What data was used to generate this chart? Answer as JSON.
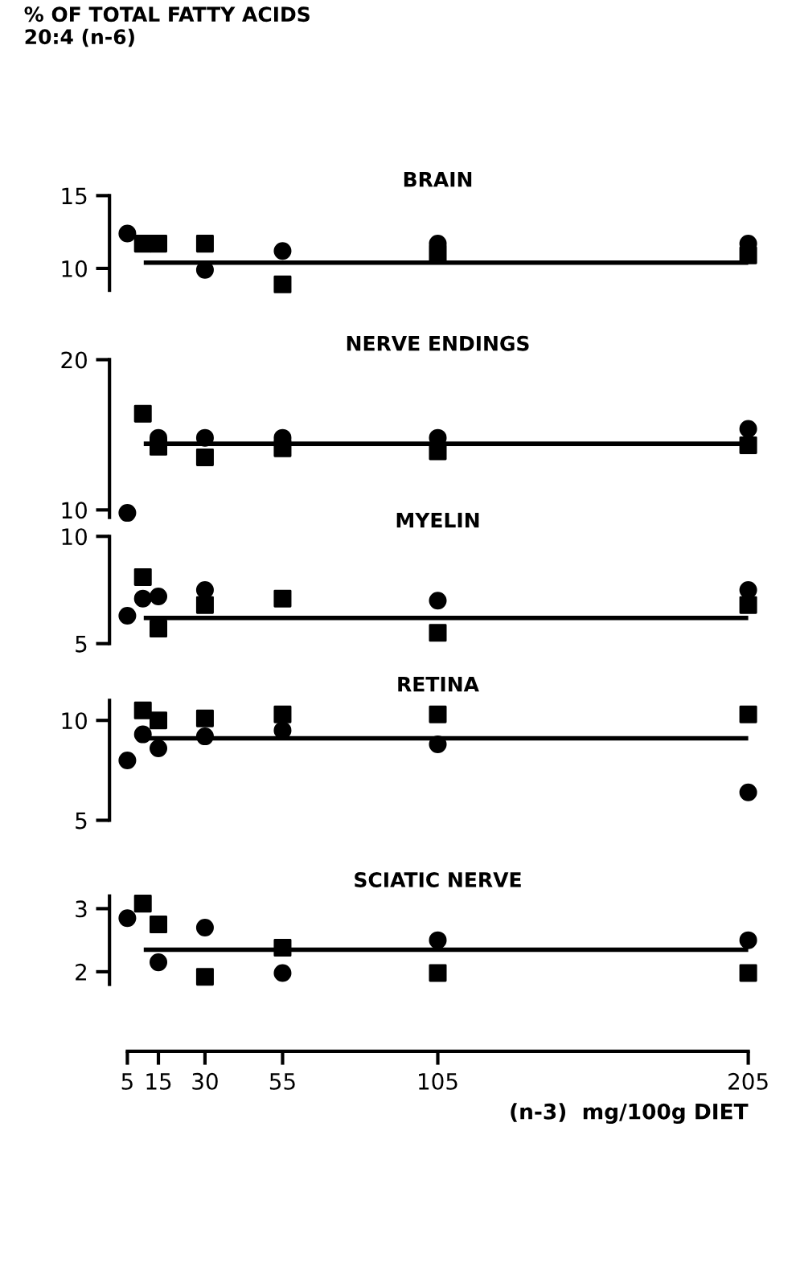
{
  "chart_data": [
    {
      "type": "scatter",
      "title": "BRAIN",
      "ylabel": "% OF TOTAL FATTY ACIDS\n20:4 (n-6)",
      "xlim": [
        5,
        205
      ],
      "ylim": [
        8.5,
        15
      ],
      "yticks": [
        10,
        15
      ],
      "tick_labels": "y",
      "grid": false,
      "legend": false,
      "series": [
        {
          "color": "#000000",
          "marker": "circle",
          "x": [
            5,
            30,
            55,
            105,
            205
          ],
          "values": [
            12.4,
            9.9,
            11.2,
            11.7,
            11.7
          ]
        },
        {
          "color": "#000000",
          "marker": "square",
          "x": [
            10,
            15,
            30,
            55,
            105,
            205
          ],
          "values": [
            11.7,
            11.7,
            11.7,
            8.9,
            11.0,
            10.9
          ]
        }
      ],
      "ref_lines": [
        {
          "axis": "y",
          "value": 10.4
        }
      ]
    },
    {
      "type": "scatter",
      "title": "NERVE ENDINGS",
      "xlim": [
        5,
        205
      ],
      "ylim": [
        9.5,
        20
      ],
      "yticks": [
        10,
        20
      ],
      "tick_labels": "y",
      "grid": false,
      "legend": false,
      "series": [
        {
          "color": "#000000",
          "marker": "circle",
          "x": [
            5,
            15,
            30,
            55,
            105,
            205
          ],
          "values": [
            9.8,
            14.8,
            14.8,
            14.8,
            14.8,
            15.4
          ]
        },
        {
          "color": "#000000",
          "marker": "square",
          "x": [
            10,
            15,
            30,
            55,
            105,
            205
          ],
          "values": [
            16.4,
            14.2,
            13.5,
            14.1,
            13.9,
            14.3
          ]
        }
      ],
      "ref_lines": [
        {
          "axis": "y",
          "value": 14.4
        }
      ]
    },
    {
      "type": "scatter",
      "title": "MYELIN",
      "xlim": [
        5,
        205
      ],
      "ylim": [
        5,
        10
      ],
      "yticks": [
        5,
        10
      ],
      "tick_labels": "y",
      "grid": false,
      "legend": false,
      "series": [
        {
          "color": "#000000",
          "marker": "circle",
          "x": [
            5,
            10,
            15,
            30,
            55,
            105,
            205
          ],
          "values": [
            6.3,
            7.1,
            7.2,
            7.5,
            null,
            7.0,
            7.5
          ]
        },
        {
          "color": "#000000",
          "marker": "square",
          "x": [
            10,
            15,
            30,
            55,
            105,
            205
          ],
          "values": [
            8.1,
            5.7,
            6.8,
            7.1,
            5.5,
            6.8
          ]
        }
      ],
      "ref_lines": [
        {
          "axis": "y",
          "value": 6.2
        }
      ]
    },
    {
      "type": "scatter",
      "title": "RETINA",
      "xlim": [
        5,
        205
      ],
      "ylim": [
        5,
        11
      ],
      "yticks": [
        5,
        10
      ],
      "tick_labels": "y",
      "grid": false,
      "legend": false,
      "series": [
        {
          "color": "#000000",
          "marker": "circle",
          "x": [
            5,
            10,
            15,
            30,
            55,
            105,
            205
          ],
          "values": [
            8.0,
            9.3,
            8.6,
            9.2,
            9.5,
            8.8,
            6.4
          ]
        },
        {
          "color": "#000000",
          "marker": "square",
          "x": [
            10,
            15,
            30,
            55,
            105,
            205
          ],
          "values": [
            10.5,
            10.0,
            10.1,
            10.3,
            10.3,
            10.3
          ]
        }
      ],
      "ref_lines": [
        {
          "axis": "y",
          "value": 9.1
        }
      ]
    },
    {
      "type": "scatter",
      "title": "SCIATIC NERVE",
      "xlabel": "(n-3)  mg/100g DIET",
      "xlim": [
        5,
        205
      ],
      "xticks": [
        5,
        15,
        30,
        55,
        105,
        205
      ],
      "ylim": [
        1.8,
        3.2
      ],
      "yticks": [
        2,
        3
      ],
      "grid": false,
      "legend": false,
      "series": [
        {
          "color": "#000000",
          "marker": "circle",
          "x": [
            5,
            15,
            30,
            55,
            105,
            205
          ],
          "values": [
            2.85,
            2.15,
            2.7,
            1.98,
            2.5,
            2.5
          ]
        },
        {
          "color": "#000000",
          "marker": "square",
          "x": [
            10,
            15,
            30,
            55,
            105,
            205
          ],
          "values": [
            3.08,
            2.75,
            1.92,
            2.38,
            1.98,
            1.98
          ]
        }
      ],
      "ref_lines": [
        {
          "axis": "y",
          "value": 2.35
        }
      ]
    }
  ]
}
